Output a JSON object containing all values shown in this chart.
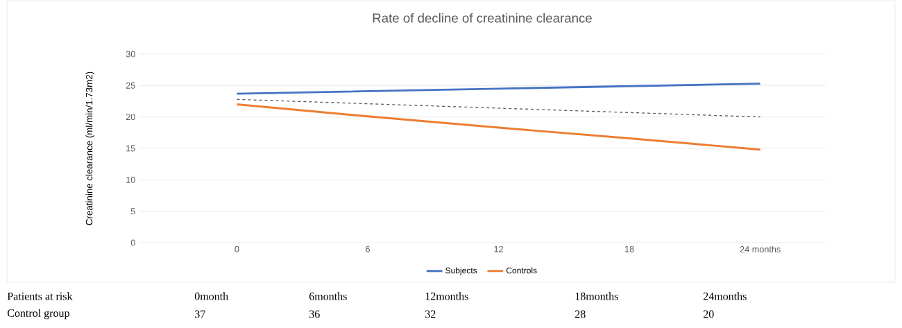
{
  "chart_data": {
    "type": "line",
    "title": "Rate of decline of creatinine clearance",
    "ylabel": "Creatinine clearance (ml/min/1.73m2)",
    "categories": [
      "0",
      "6",
      "12",
      "18",
      "24 months"
    ],
    "series": [
      {
        "name": "Subjects",
        "color": "#4472c4",
        "values": [
          23.7,
          24.1,
          24.5,
          24.9,
          25.3
        ]
      },
      {
        "name": "Controls",
        "color": "#ed7d31",
        "values": [
          22.0,
          20.1,
          18.3,
          16.6,
          14.8
        ]
      },
      {
        "type": "line",
        "color": "#595959",
        "line_style": "dashed",
        "values": [
          22.8,
          22.1,
          21.4,
          20.7,
          20.0
        ]
      }
    ],
    "ylim": [
      0,
      30
    ],
    "yticks": [
      0,
      5,
      10,
      15,
      20,
      25,
      30
    ],
    "grid": "y",
    "legend": "bottom",
    "annotations": [
      "Patients at risk",
      "0month",
      "6months",
      "12months",
      "18months",
      "24months",
      "Control group",
      "37",
      "36",
      "32",
      "28",
      "20"
    ]
  }
}
